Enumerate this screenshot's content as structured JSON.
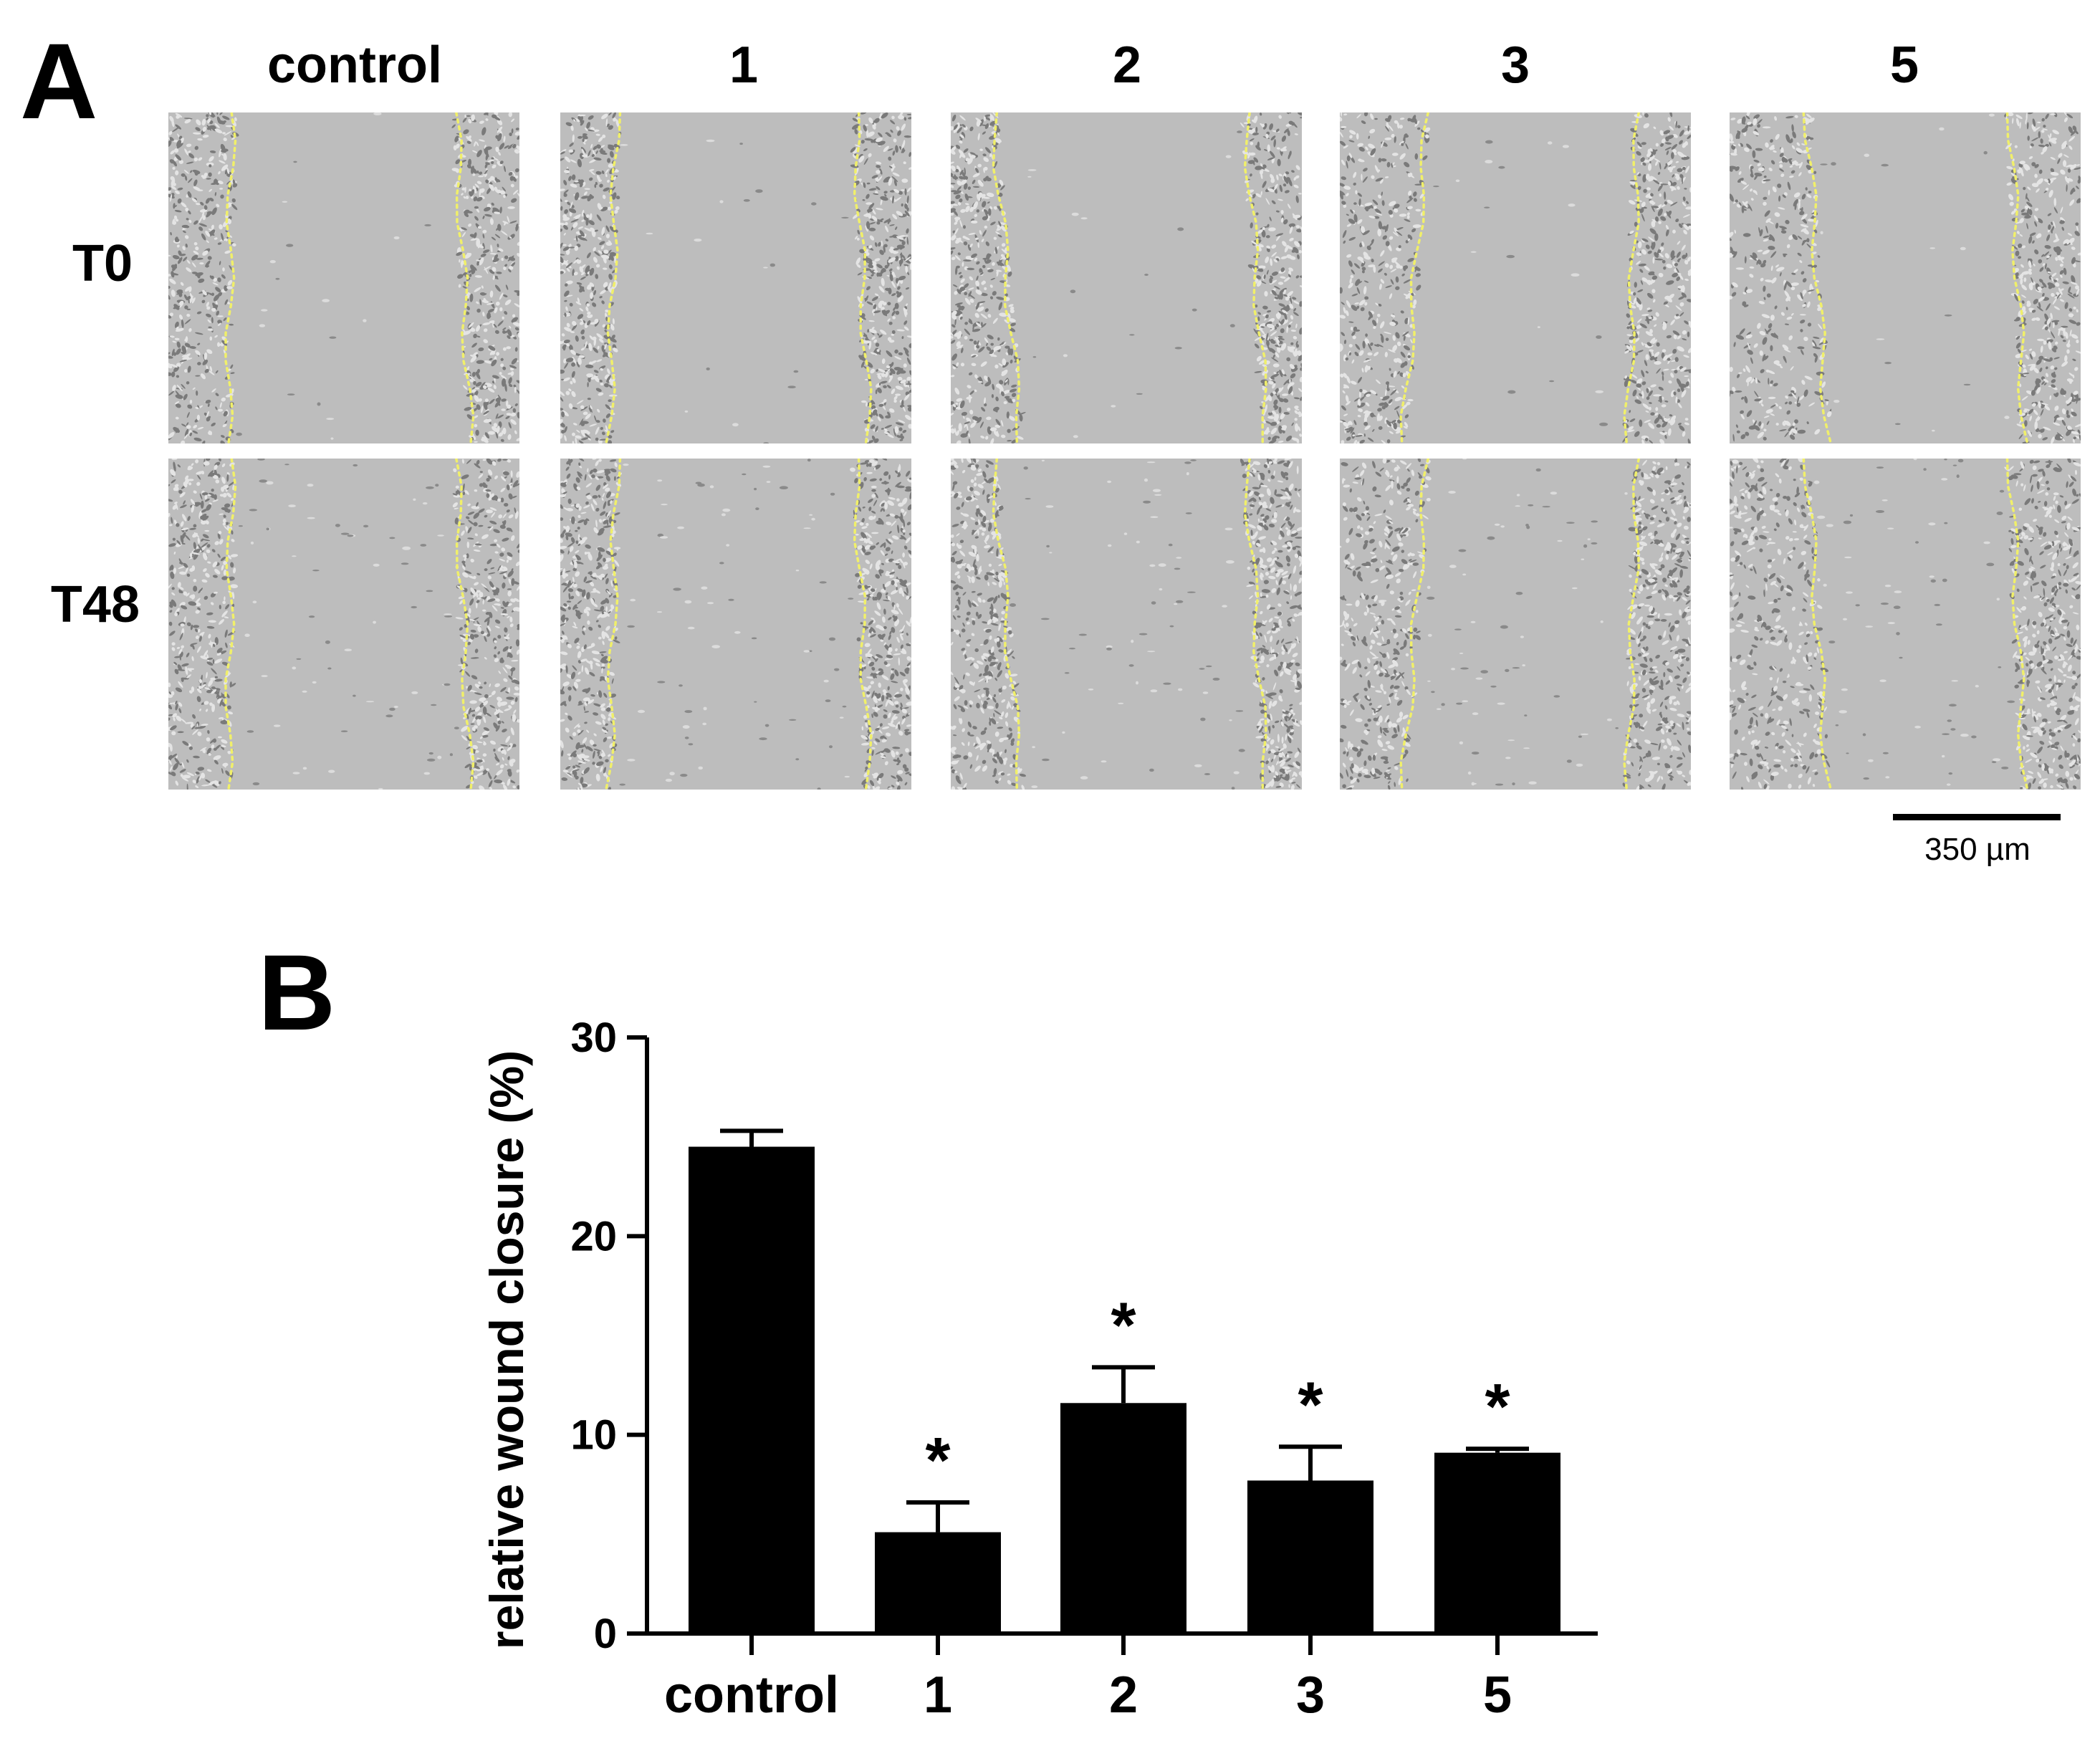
{
  "panel_a": {
    "letter": "A",
    "columns": [
      "control",
      "1",
      "2",
      "3",
      "5"
    ],
    "rows": [
      "T0",
      "T48"
    ],
    "scale_bar_label": "350 µm",
    "colors": {
      "border_line": "#f0ef6a",
      "background": "#bdbdbd"
    }
  },
  "panel_b": {
    "letter": "B"
  },
  "chart_data": {
    "type": "bar",
    "categories": [
      "control",
      "1",
      "2",
      "3",
      "5"
    ],
    "values": [
      24.5,
      5.1,
      11.6,
      7.7,
      9.1
    ],
    "errors": [
      0.8,
      1.5,
      1.8,
      1.7,
      0.2
    ],
    "significance": [
      "",
      "*",
      "*",
      "*",
      "*"
    ],
    "ylabel": "relative wound closure (%)",
    "xlabel": "",
    "ylim": [
      0,
      30
    ],
    "yticks": [
      0,
      10,
      20,
      30
    ],
    "grid": false,
    "bar_color": "#000000"
  }
}
